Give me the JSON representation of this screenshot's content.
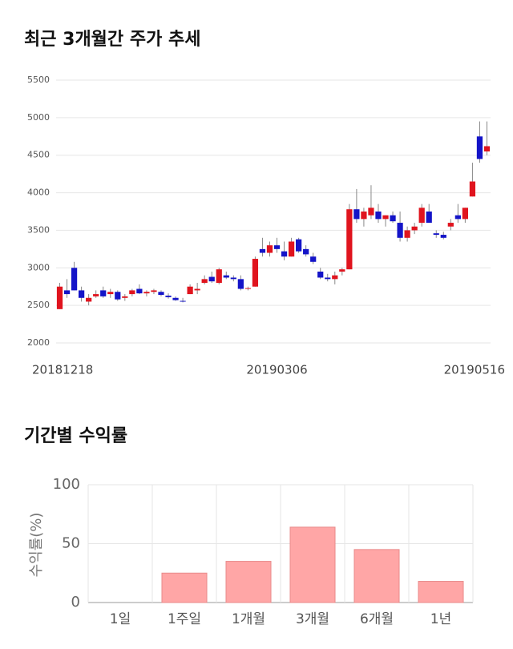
{
  "chart_data": [
    {
      "type": "candlestick",
      "title": "최근 3개월간 주가 추세",
      "categories": [
        "20181218",
        null,
        null,
        null,
        null,
        null,
        null,
        null,
        null,
        null,
        null,
        null,
        null,
        null,
        null,
        null,
        null,
        null,
        null,
        null,
        null,
        null,
        null,
        null,
        null,
        null,
        null,
        null,
        null,
        null,
        "20190306",
        null,
        null,
        null,
        null,
        null,
        null,
        null,
        null,
        null,
        null,
        null,
        null,
        null,
        null,
        null,
        null,
        null,
        null,
        null,
        null,
        null,
        null,
        null,
        null,
        null,
        null,
        null,
        null,
        "20190516"
      ],
      "open": [
        2450,
        2700,
        3000,
        2700,
        2550,
        2620,
        2700,
        2650,
        2680,
        2600,
        2650,
        2720,
        2660,
        2680,
        2680,
        2630,
        2600,
        2560,
        2650,
        2700,
        2800,
        2880,
        2800,
        2900,
        2870,
        2850,
        2720,
        2750,
        3250,
        3200,
        3300,
        3220,
        3150,
        3380,
        3250,
        3150,
        2950,
        2870,
        2850,
        2950,
        2980,
        3780,
        3650,
        3700,
        3750,
        3650,
        3700,
        3600,
        3400,
        3500,
        3600,
        3750,
        3460,
        3440,
        3550,
        3700,
        3650,
        3950,
        4750,
        4550
      ],
      "high": [
        2800,
        2850,
        3080,
        2750,
        2650,
        2700,
        2750,
        2720,
        2700,
        2650,
        2720,
        2780,
        2700,
        2720,
        2700,
        2660,
        2620,
        2600,
        2780,
        2800,
        2900,
        2950,
        3000,
        2950,
        2900,
        2900,
        2750,
        3150,
        3400,
        3350,
        3400,
        3350,
        3400,
        3400,
        3300,
        3200,
        3000,
        2920,
        2950,
        3000,
        3850,
        4050,
        3800,
        4100,
        3850,
        3700,
        3750,
        3750,
        3550,
        3600,
        3850,
        3850,
        3500,
        3480,
        3650,
        3850,
        3800,
        4400,
        4950,
        4950
      ],
      "low": [
        2450,
        2600,
        2700,
        2550,
        2500,
        2600,
        2600,
        2600,
        2560,
        2560,
        2620,
        2650,
        2620,
        2650,
        2620,
        2590,
        2560,
        2540,
        2650,
        2650,
        2780,
        2800,
        2780,
        2850,
        2820,
        2700,
        2700,
        2750,
        3150,
        3150,
        3200,
        3100,
        3150,
        3200,
        3150,
        3050,
        2850,
        2820,
        2780,
        2900,
        2980,
        3600,
        3550,
        3650,
        3600,
        3550,
        3600,
        3350,
        3350,
        3450,
        3550,
        3600,
        3400,
        3380,
        3500,
        3600,
        3600,
        3950,
        4400,
        4500
      ],
      "close": [
        2750,
        2650,
        2700,
        2600,
        2600,
        2650,
        2620,
        2680,
        2580,
        2620,
        2700,
        2660,
        2680,
        2700,
        2640,
        2610,
        2570,
        2550,
        2750,
        2720,
        2850,
        2820,
        2980,
        2870,
        2850,
        2720,
        2730,
        3120,
        3200,
        3300,
        3250,
        3150,
        3350,
        3220,
        3180,
        3080,
        2870,
        2850,
        2900,
        2980,
        3780,
        3650,
        3750,
        3800,
        3650,
        3700,
        3620,
        3400,
        3500,
        3550,
        3800,
        3600,
        3440,
        3400,
        3600,
        3650,
        3800,
        4150,
        4450,
        4620
      ],
      "up_color": "#e0141e",
      "down_color": "#1414c8",
      "ylim": [
        2000,
        5500
      ],
      "yticks": [
        2000,
        2500,
        3000,
        3500,
        4000,
        4500,
        5000,
        5500
      ],
      "grid": true
    },
    {
      "type": "bar",
      "title": "기간별 수익률",
      "ylabel": "수익률(%)",
      "categories": [
        "1일",
        "1주일",
        "1개월",
        "3개월",
        "6개월",
        "1년"
      ],
      "values": [
        0,
        25,
        35,
        64,
        45,
        18
      ],
      "color": "#ffa6a6",
      "ylim": [
        0,
        100
      ],
      "yticks": [
        0,
        50,
        100
      ],
      "grid": true
    }
  ]
}
